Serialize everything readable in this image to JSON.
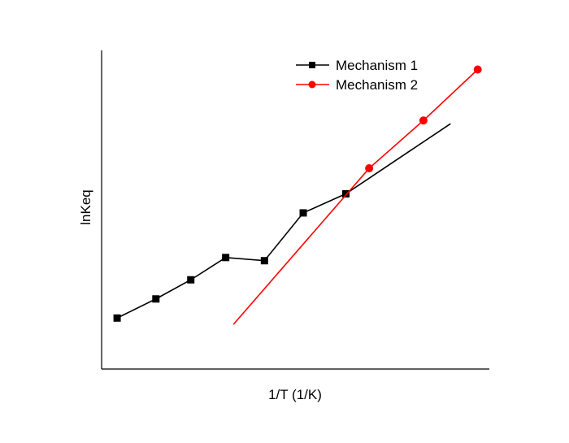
{
  "chart_data": {
    "type": "line",
    "title": "",
    "xlabel": "1/T (1/K)",
    "ylabel": "lnKeq",
    "xlim": [
      0,
      10
    ],
    "ylim": [
      0,
      10
    ],
    "grid": false,
    "ticks_shown": false,
    "legend_position": "top-right",
    "series": [
      {
        "name": "Mechanism 1",
        "color": "#000000",
        "marker": "square",
        "x": [
          0.4,
          1.4,
          2.3,
          3.2,
          4.2,
          5.2,
          6.3
        ],
        "y": [
          1.6,
          2.2,
          2.8,
          3.5,
          3.4,
          4.9,
          5.5
        ],
        "line_extends_to_x": 9.0,
        "line_extends_to_y": 7.7
      },
      {
        "name": "Mechanism 2",
        "color": "#ff0000",
        "marker": "circle",
        "x": [
          6.9,
          8.3,
          9.7
        ],
        "y": [
          6.3,
          7.8,
          9.4
        ],
        "line_starts_at_x": 3.4,
        "line_starts_at_y": 1.4
      }
    ]
  }
}
